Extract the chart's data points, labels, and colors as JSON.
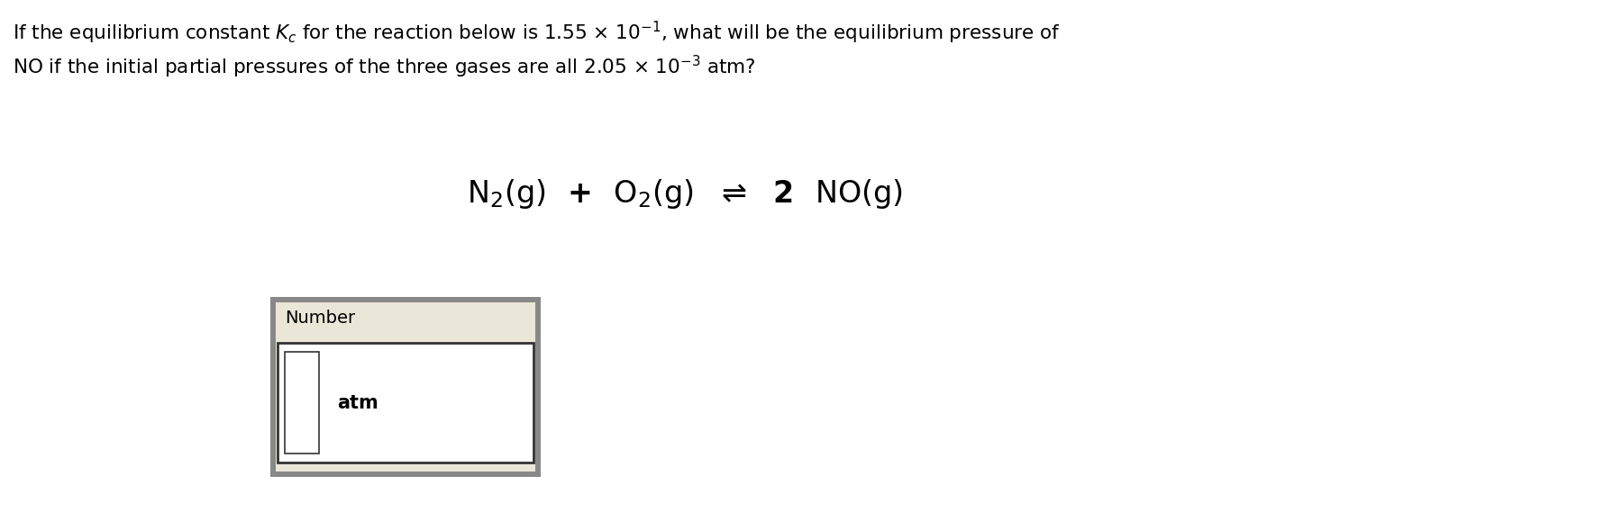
{
  "background_color": "#ffffff",
  "box_bg": "#eae6d8",
  "box_outer_edge": "#888888",
  "box_inner_edge": "#555555",
  "text_color": "#000000",
  "text_fontsize": 15.5,
  "eq_fontsize": 24,
  "label_fontsize": 14,
  "atm_fontsize": 15
}
